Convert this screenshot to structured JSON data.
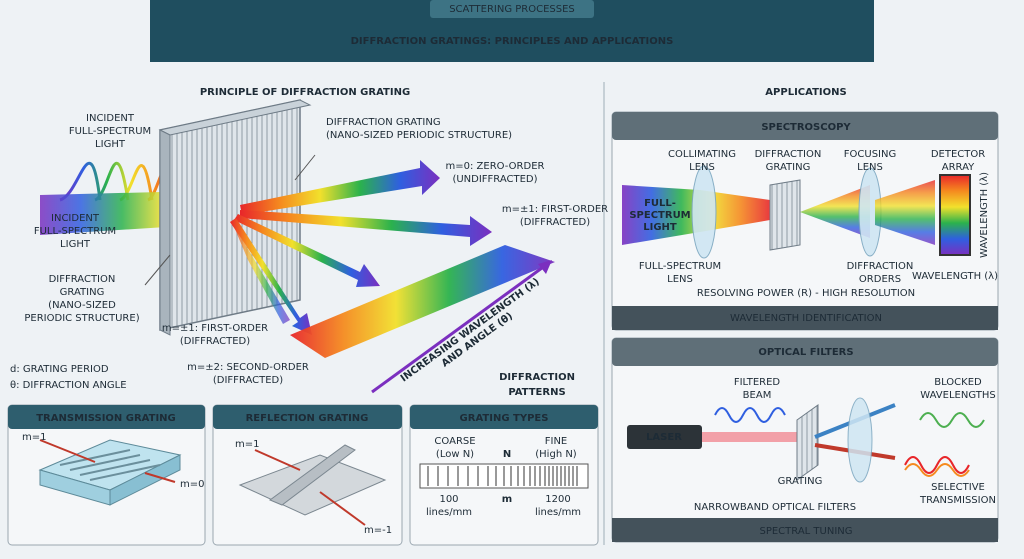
{
  "header": {
    "tag": "SCATTERING PROCESSES",
    "title": "DIFFRACTION GRATINGS: PRINCIPLES AND APPLICATIONS"
  },
  "principle": {
    "title": "PRINCIPLE OF DIFFRACTION GRATING",
    "incident_top": [
      "INCIDENT",
      "FULL-SPECTRUM",
      "LIGHT"
    ],
    "grating_top": [
      "DIFFRACTION GRATING",
      "(NANO-SIZED PERIODIC STRUCTURE)"
    ],
    "incident_left": [
      "INCIDENT",
      "FULL-SPECTRUM",
      "LIGHT"
    ],
    "grating_left": [
      "DIFFRACTION",
      "GRATING",
      "(NANO-SIZED",
      "PERIODIC STRUCTURE)"
    ],
    "zero_order": [
      "m=0: ZERO-ORDER",
      "(UNDIFFRACTED)"
    ],
    "first_order_up": [
      "m=±1: FIRST-ORDER",
      "(DIFFRACTED)"
    ],
    "first_order_down": [
      "m=±1: FIRST-ORDER",
      "(DIFFRACTED)"
    ],
    "second_order": [
      "m=±2: SECOND-ORDER",
      "(DIFFRACTED)"
    ],
    "axis": [
      "INCREASING WAVELENGTH (λ)",
      "AND ANGLE (θ)"
    ],
    "legend": [
      "d: GRATING PERIOD",
      "θ: DIFFRACTION ANGLE"
    ],
    "patterns": [
      "DIFFRACTION",
      "PATTERNS"
    ]
  },
  "transmission": {
    "title": "TRANSMISSION GRATING",
    "m_plus": "m=1",
    "m_zero": "m=0"
  },
  "reflection": {
    "title": "REFLECTION GRATING",
    "m_plus": "m=1",
    "m_minus": "m=-1"
  },
  "types": {
    "title": "GRATING TYPES",
    "coarse": [
      "COARSE",
      "(Low N)"
    ],
    "n": "N",
    "fine": [
      "FINE",
      "(High N)"
    ],
    "low": [
      "100",
      "lines/mm"
    ],
    "m": "m",
    "high": [
      "1200",
      "lines/mm"
    ]
  },
  "applications": {
    "title": "APPLICATIONS"
  },
  "spectroscopy": {
    "title": "SPECTROSCOPY",
    "collimating": [
      "COLLIMATING",
      "LENS"
    ],
    "grating": [
      "DIFFRACTION",
      "GRATING"
    ],
    "focusing": [
      "FOCUSING",
      "LENS"
    ],
    "detector": [
      "DETECTOR",
      "ARRAY"
    ],
    "source": [
      "FULL-",
      "SPECTRUM",
      "LIGHT"
    ],
    "lens_bottom": [
      "FULL-SPECTRUM",
      "LENS"
    ],
    "orders": [
      "DIFFRACTION",
      "ORDERS"
    ],
    "wavelength_v": "WAVELENGTH (λ)",
    "wavelength_h": "WAVELENGTH (λ)",
    "resolving": "RESOLVING POWER (R) - HIGH RESOLUTION",
    "footer": "WAVELENGTH IDENTIFICATION"
  },
  "filters": {
    "title": "OPTICAL FILTERS",
    "laser": "LASER",
    "filtered": [
      "FILTERED",
      "BEAM"
    ],
    "blocked": [
      "BLOCKED",
      "WAVELENGTHS"
    ],
    "grating": "GRATING",
    "selective": [
      "SELECTIVE",
      "TRANSMISSION"
    ],
    "narrowband": "NARROWBAND OPTICAL FILTERS",
    "footer": "SPECTRAL TUNING"
  }
}
